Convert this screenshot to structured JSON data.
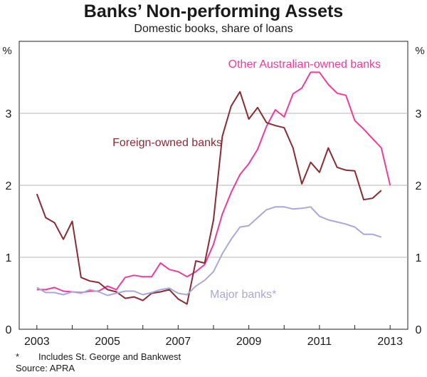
{
  "chart_data": {
    "type": "line",
    "title": "Banks’ Non-performing Assets",
    "subtitle": "Domestic books, share of loans",
    "ylabel_left": "%",
    "ylabel_right": "%",
    "ylim": [
      0,
      4
    ],
    "yticks": [
      0,
      1,
      2,
      3
    ],
    "ytick_labels": [
      "0",
      "1",
      "2",
      "3"
    ],
    "xlim": [
      2002.5,
      2013.5
    ],
    "xticks": [
      2003,
      2005,
      2007,
      2009,
      2011,
      2013
    ],
    "xtick_labels": [
      "2003",
      "2005",
      "2007",
      "2009",
      "2011",
      "2013"
    ],
    "grid": true,
    "series": [
      {
        "name": "Other Australian-owned banks",
        "color": "#ee3b9c",
        "label_text": "Other Australian-owned banks",
        "points": [
          [
            2003.0,
            0.55
          ],
          [
            2003.25,
            0.55
          ],
          [
            2003.5,
            0.58
          ],
          [
            2003.75,
            0.53
          ],
          [
            2004.0,
            0.52
          ],
          [
            2004.25,
            0.51
          ],
          [
            2004.5,
            0.53
          ],
          [
            2004.75,
            0.53
          ],
          [
            2005.0,
            0.6
          ],
          [
            2005.25,
            0.55
          ],
          [
            2005.5,
            0.72
          ],
          [
            2005.75,
            0.75
          ],
          [
            2006.0,
            0.73
          ],
          [
            2006.25,
            0.73
          ],
          [
            2006.5,
            0.92
          ],
          [
            2006.75,
            0.83
          ],
          [
            2007.0,
            0.8
          ],
          [
            2007.25,
            0.73
          ],
          [
            2007.5,
            0.8
          ],
          [
            2007.75,
            0.9
          ],
          [
            2008.0,
            1.18
          ],
          [
            2008.25,
            1.6
          ],
          [
            2008.5,
            1.9
          ],
          [
            2008.75,
            2.15
          ],
          [
            2009.0,
            2.3
          ],
          [
            2009.25,
            2.5
          ],
          [
            2009.5,
            2.82
          ],
          [
            2009.75,
            3.05
          ],
          [
            2010.0,
            2.95
          ],
          [
            2010.25,
            3.27
          ],
          [
            2010.5,
            3.35
          ],
          [
            2010.75,
            3.57
          ],
          [
            2011.0,
            3.57
          ],
          [
            2011.25,
            3.4
          ],
          [
            2011.5,
            3.28
          ],
          [
            2011.75,
            3.25
          ],
          [
            2012.0,
            2.9
          ],
          [
            2012.25,
            2.78
          ],
          [
            2012.5,
            2.65
          ],
          [
            2012.75,
            2.52
          ],
          [
            2013.0,
            2.0
          ]
        ]
      },
      {
        "name": "Foreign-owned banks",
        "color": "#8b2a33",
        "label_text": "Foreign-owned banks",
        "points": [
          [
            2003.0,
            1.88
          ],
          [
            2003.25,
            1.55
          ],
          [
            2003.5,
            1.48
          ],
          [
            2003.75,
            1.25
          ],
          [
            2004.0,
            1.5
          ],
          [
            2004.25,
            0.72
          ],
          [
            2004.5,
            0.67
          ],
          [
            2004.75,
            0.65
          ],
          [
            2005.0,
            0.55
          ],
          [
            2005.25,
            0.52
          ],
          [
            2005.5,
            0.43
          ],
          [
            2005.75,
            0.45
          ],
          [
            2006.0,
            0.4
          ],
          [
            2006.25,
            0.5
          ],
          [
            2006.5,
            0.52
          ],
          [
            2006.75,
            0.55
          ],
          [
            2007.0,
            0.42
          ],
          [
            2007.25,
            0.35
          ],
          [
            2007.5,
            0.95
          ],
          [
            2007.75,
            0.92
          ],
          [
            2008.0,
            1.52
          ],
          [
            2008.25,
            2.68
          ],
          [
            2008.5,
            3.1
          ],
          [
            2008.75,
            3.3
          ],
          [
            2009.0,
            2.92
          ],
          [
            2009.25,
            3.08
          ],
          [
            2009.5,
            2.87
          ],
          [
            2009.75,
            2.83
          ],
          [
            2010.0,
            2.8
          ],
          [
            2010.25,
            2.52
          ],
          [
            2010.5,
            2.02
          ],
          [
            2010.75,
            2.32
          ],
          [
            2011.0,
            2.18
          ],
          [
            2011.25,
            2.52
          ],
          [
            2011.5,
            2.25
          ],
          [
            2011.75,
            2.21
          ],
          [
            2012.0,
            2.2
          ],
          [
            2012.25,
            1.8
          ],
          [
            2012.5,
            1.82
          ],
          [
            2012.75,
            1.93
          ]
        ]
      },
      {
        "name": "Major banks*",
        "color": "#a9a8d8",
        "label_text": "Major banks*",
        "points": [
          [
            2003.0,
            0.58
          ],
          [
            2003.25,
            0.51
          ],
          [
            2003.5,
            0.51
          ],
          [
            2003.75,
            0.48
          ],
          [
            2004.0,
            0.52
          ],
          [
            2004.25,
            0.5
          ],
          [
            2004.5,
            0.55
          ],
          [
            2004.75,
            0.52
          ],
          [
            2005.0,
            0.47
          ],
          [
            2005.25,
            0.5
          ],
          [
            2005.5,
            0.53
          ],
          [
            2005.75,
            0.53
          ],
          [
            2006.0,
            0.48
          ],
          [
            2006.25,
            0.51
          ],
          [
            2006.5,
            0.55
          ],
          [
            2006.75,
            0.57
          ],
          [
            2007.0,
            0.5
          ],
          [
            2007.25,
            0.48
          ],
          [
            2007.5,
            0.6
          ],
          [
            2007.75,
            0.68
          ],
          [
            2008.0,
            0.8
          ],
          [
            2008.25,
            1.05
          ],
          [
            2008.5,
            1.25
          ],
          [
            2008.75,
            1.42
          ],
          [
            2009.0,
            1.44
          ],
          [
            2009.25,
            1.55
          ],
          [
            2009.5,
            1.66
          ],
          [
            2009.75,
            1.7
          ],
          [
            2010.0,
            1.7
          ],
          [
            2010.25,
            1.67
          ],
          [
            2010.5,
            1.68
          ],
          [
            2010.75,
            1.7
          ],
          [
            2011.0,
            1.57
          ],
          [
            2011.25,
            1.52
          ],
          [
            2011.5,
            1.49
          ],
          [
            2011.75,
            1.46
          ],
          [
            2012.0,
            1.42
          ],
          [
            2012.25,
            1.32
          ],
          [
            2012.5,
            1.32
          ],
          [
            2012.75,
            1.28
          ]
        ]
      }
    ]
  },
  "notes": {
    "footnote_marker": "*",
    "footnote_text": "Includes St. George and Bankwest",
    "source": "Source: APRA"
  }
}
